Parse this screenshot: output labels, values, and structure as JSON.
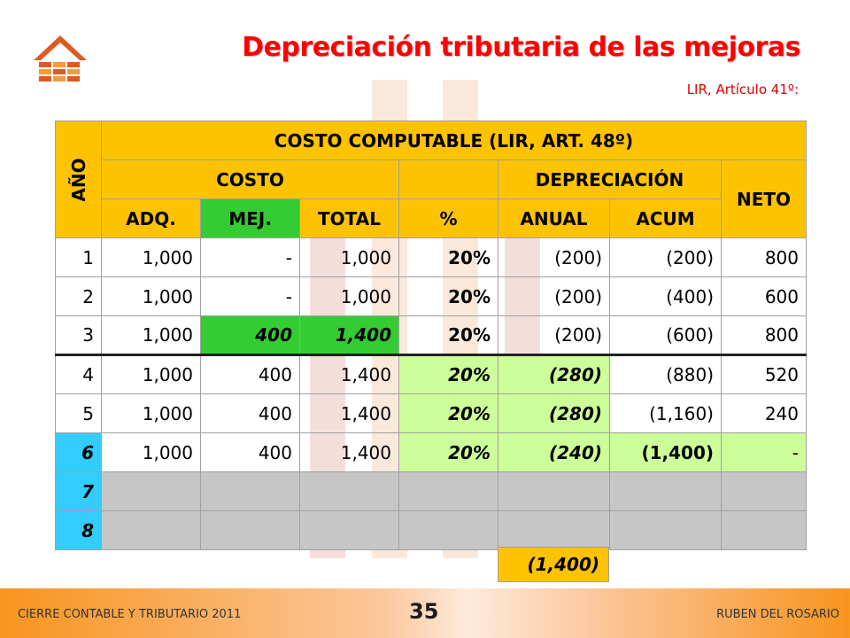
{
  "slide": {
    "title": "Depreciación tributaria de las mejoras",
    "subtitle": "LIR, Artículo 41º:"
  },
  "table": {
    "year_header": "AÑO",
    "main_header": "COSTO COMPUTABLE (LIR, ART. 48º)",
    "costo_header": "COSTO",
    "depreciacion_header": "DEPRECIACIÓN",
    "neto_header": "NETO",
    "sub_headers": [
      "ADQ.",
      "MEJ.",
      "TOTAL",
      "%",
      "ANUAL",
      "ACUM"
    ],
    "rows": [
      {
        "year": "1",
        "adq": "1,000",
        "mej": "-",
        "total": "1,000",
        "pct": "20%",
        "anual": "(200)",
        "acum": "(200)",
        "neto": "800"
      },
      {
        "year": "2",
        "adq": "1,000",
        "mej": "-",
        "total": "1,000",
        "pct": "20%",
        "anual": "(200)",
        "acum": "(400)",
        "neto": "600"
      },
      {
        "year": "3",
        "adq": "1,000",
        "mej": "400",
        "total": "1,400",
        "pct": "20%",
        "anual": "(200)",
        "acum": "(600)",
        "neto": "800"
      },
      {
        "year": "4",
        "adq": "1,000",
        "mej": "400",
        "total": "1,400",
        "pct": "20%",
        "anual": "(280)",
        "acum": "(880)",
        "neto": "520"
      },
      {
        "year": "5",
        "adq": "1,000",
        "mej": "400",
        "total": "1,400",
        "pct": "20%",
        "anual": "(280)",
        "acum": "(1,160)",
        "neto": "240"
      },
      {
        "year": "6",
        "adq": "1,000",
        "mej": "400",
        "total": "1,400",
        "pct": "20%",
        "anual": "(240)",
        "acum": "(1,400)",
        "neto": "-"
      },
      {
        "year": "7",
        "adq": "",
        "mej": "",
        "total": "",
        "pct": "",
        "anual": "",
        "acum": "",
        "neto": ""
      },
      {
        "year": "8",
        "adq": "",
        "mej": "",
        "total": "",
        "pct": "",
        "anual": "",
        "acum": "",
        "neto": ""
      }
    ],
    "sum_anual": "(1,400)"
  },
  "footer": {
    "left": "CIERRE CONTABLE Y TRIBUTARIO 2011",
    "page": "35",
    "right": "RUBEN DEL ROSARIO"
  },
  "colors": {
    "header": "#fdc300",
    "title": "#ff0000",
    "highlight_green": "#33cc33",
    "highlight_lightgreen": "#ccff99",
    "highlight_cyan": "#33ccff",
    "empty_grey": "#c6c6c6",
    "footer": "#f7941e"
  }
}
